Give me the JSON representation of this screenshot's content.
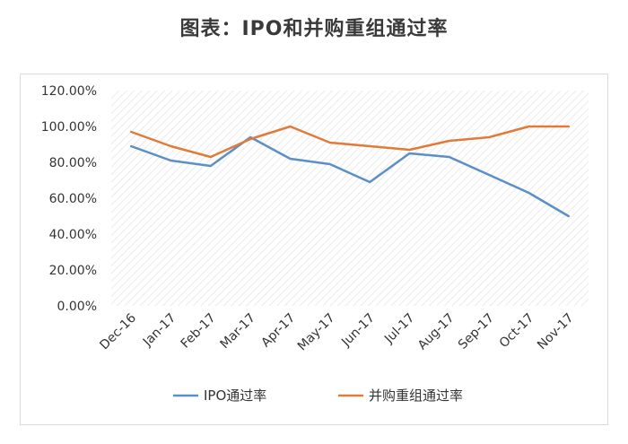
{
  "title": "图表：IPO和并购重组通过率",
  "chart_data": {
    "type": "line",
    "title": "图表：IPO和并购重组通过率",
    "categories": [
      "Dec-16",
      "Jan-17",
      "Feb-17",
      "Mar-17",
      "Apr-17",
      "May-17",
      "Jun-17",
      "Jul-17",
      "Aug-17",
      "Sep-17",
      "Oct-17",
      "Nov-17"
    ],
    "y_ticks": [
      "0.00%",
      "20.00%",
      "40.00%",
      "60.00%",
      "80.00%",
      "100.00%",
      "120.00%"
    ],
    "ylim": [
      0,
      120
    ],
    "grid": false,
    "background_pattern": "diagonal-hatch",
    "legend_position": "bottom",
    "series": [
      {
        "name": "IPO通过率",
        "color": "#5b8fc9",
        "values": [
          89,
          81,
          78,
          94,
          82,
          79,
          69,
          85,
          83,
          73,
          63,
          50
        ]
      },
      {
        "name": "并购重组通过率",
        "color": "#e07b39",
        "values": [
          97,
          89,
          83,
          93,
          100,
          91,
          89,
          87,
          92,
          94,
          100,
          100
        ]
      }
    ]
  }
}
